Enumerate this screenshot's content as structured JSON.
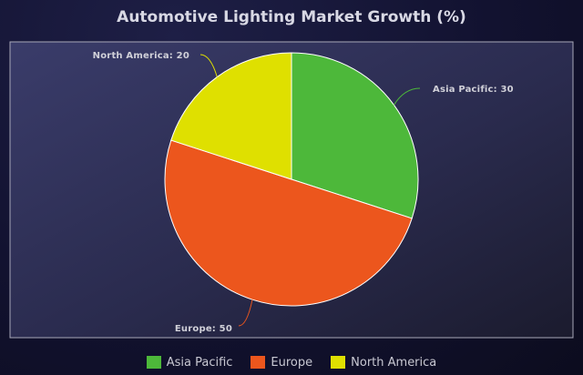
{
  "chart_data": {
    "type": "pie",
    "title": "Automotive Lighting Market Growth (%)",
    "slices": [
      {
        "name": "Asia Pacific",
        "value": 30,
        "label": "Asia Pacific: 30",
        "color": "#4db83a"
      },
      {
        "name": "Europe",
        "value": 50,
        "label": "Europe: 50",
        "color": "#ec561d"
      },
      {
        "name": "North America",
        "value": 20,
        "label": "North America: 20",
        "color": "#dfe000"
      }
    ],
    "legend_position": "bottom",
    "colors": {
      "background": "#141432",
      "plot_background": "#2c2e56",
      "text": "#d0d0d8"
    }
  }
}
